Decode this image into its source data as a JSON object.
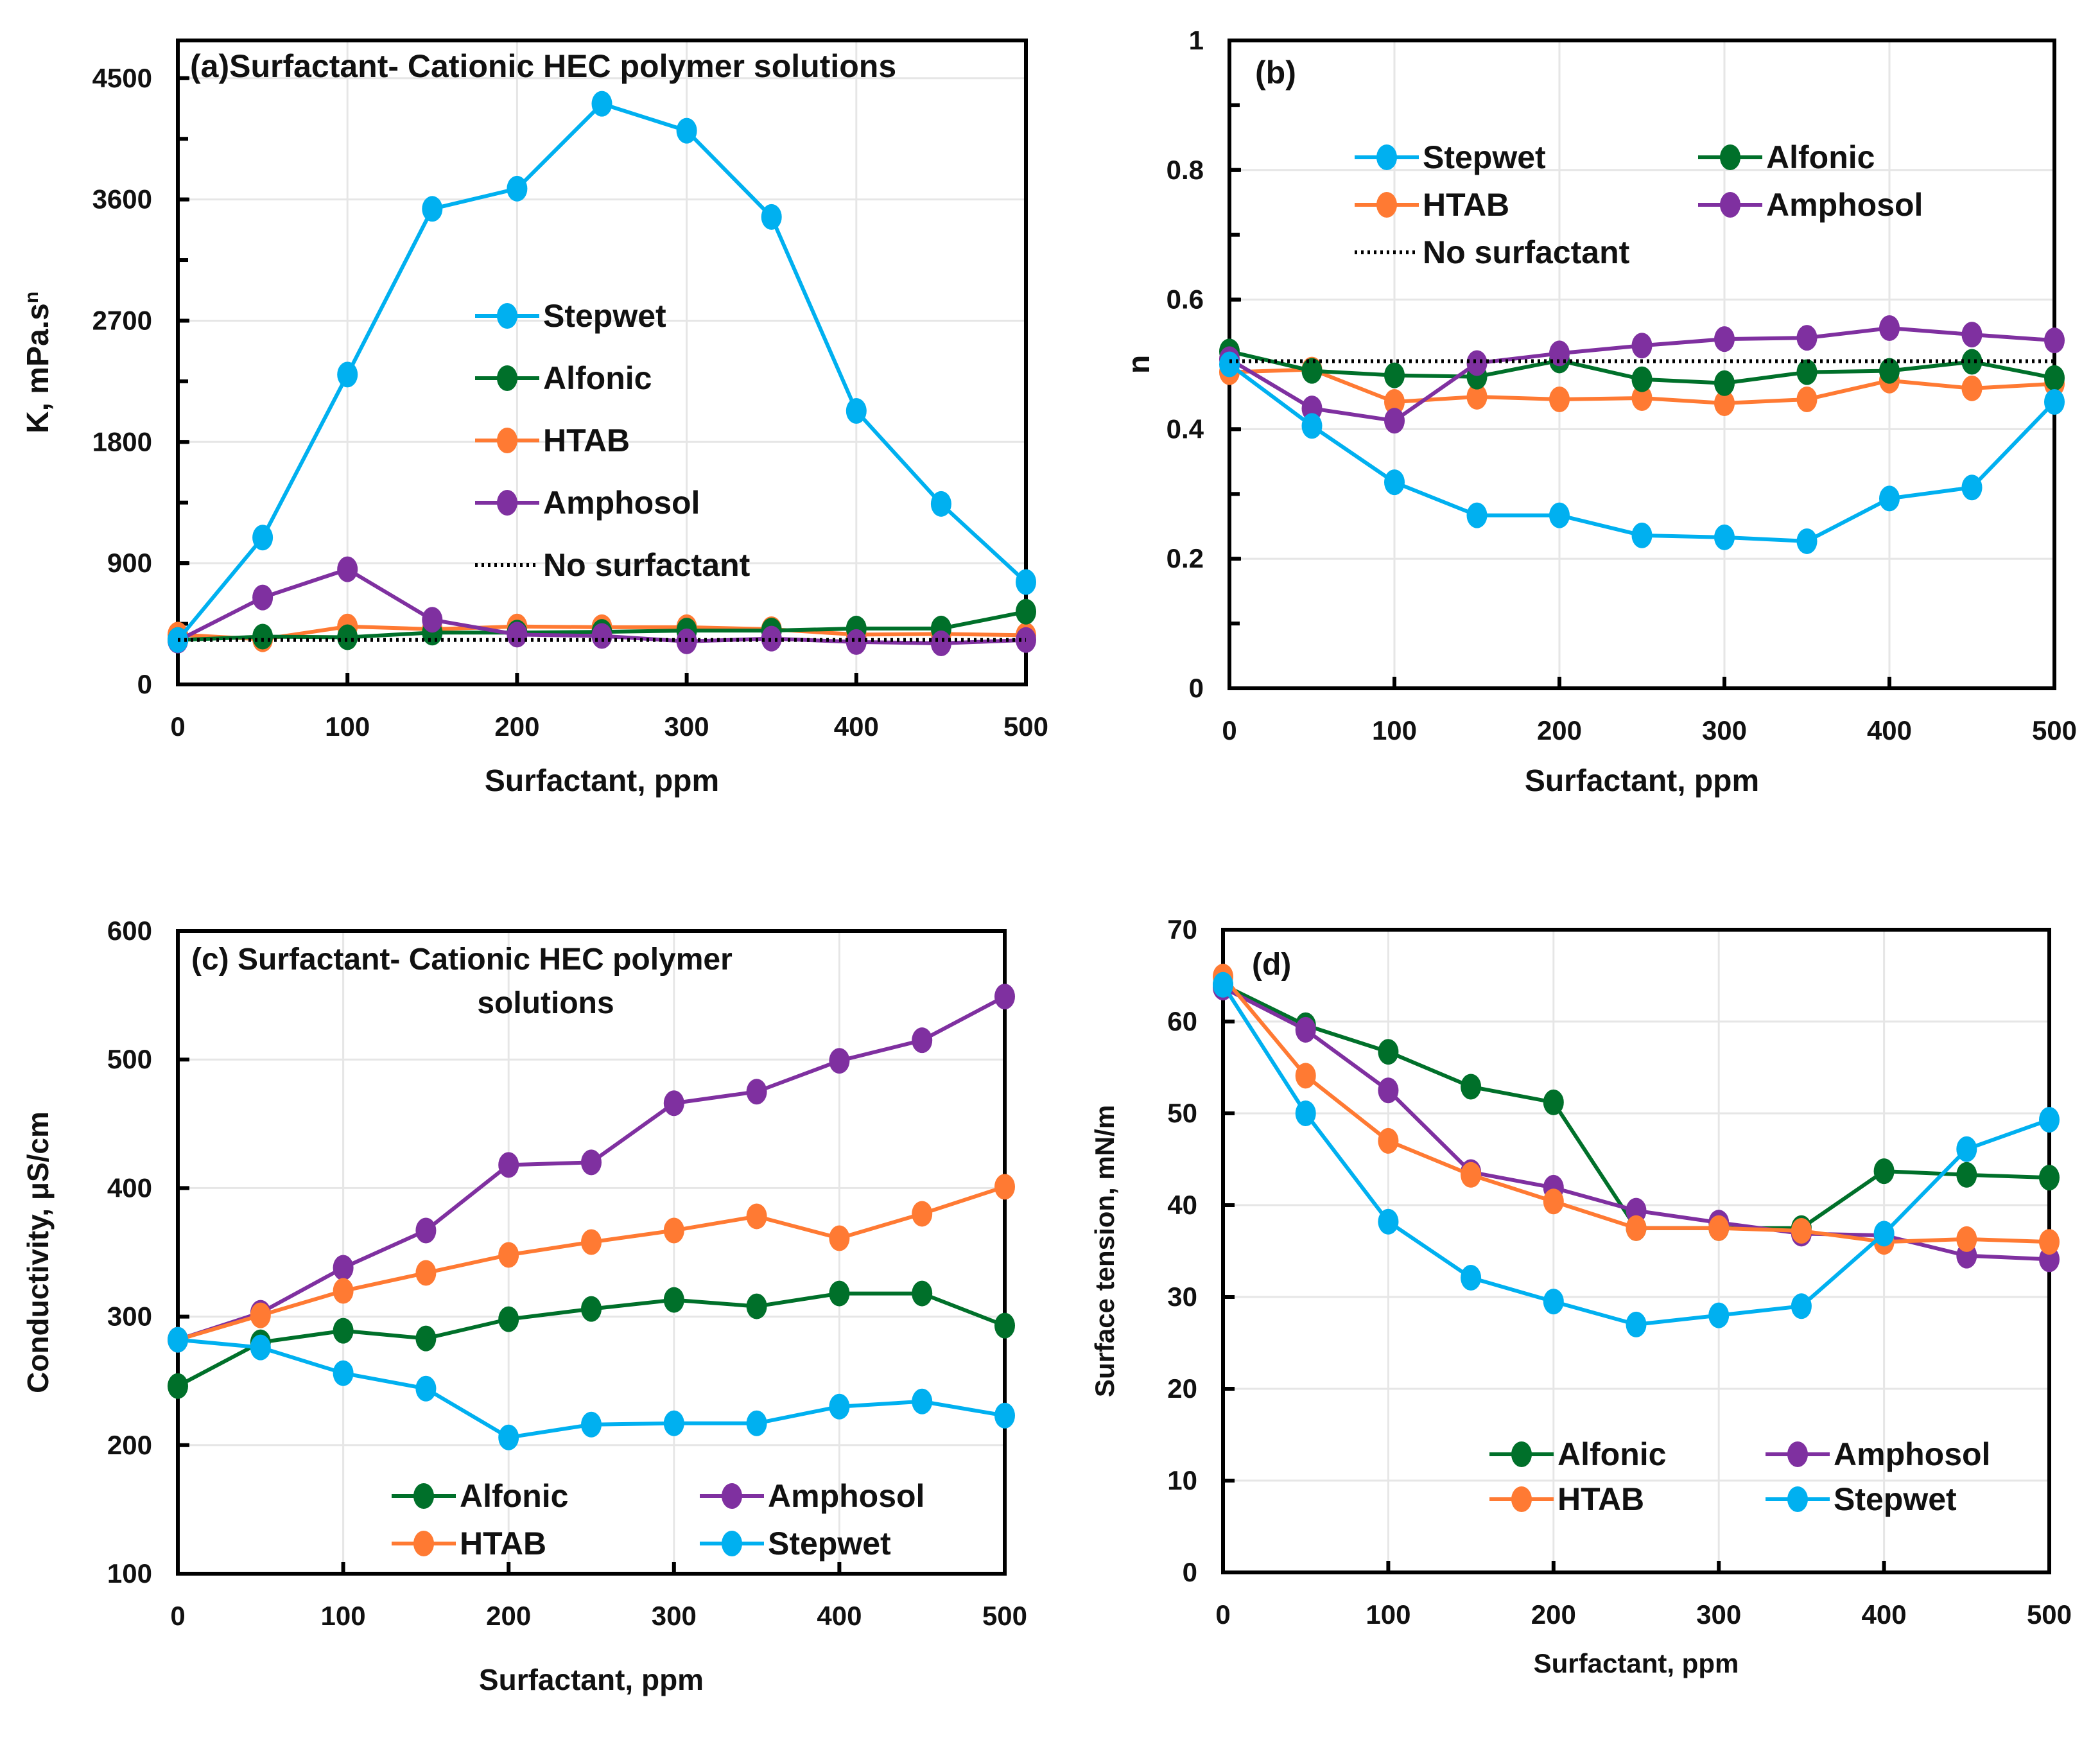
{
  "figure": {
    "colors": {
      "Stepwet": "#00B0F0",
      "Alfonic": "#00702A",
      "HTAB": "#FF7A33",
      "Amphosol": "#7F30A0",
      "No surfactant": "#000000",
      "axis": "#000000",
      "grid": "#E6E6E6"
    }
  },
  "chart_data": [
    {
      "id": "a",
      "type": "line",
      "title": "(a)Surfactant- Cationic HEC polymer solutions",
      "xlabel": "Surfactant, ppm",
      "ylabel": "K, mPa.s",
      "ylabel_superscript": "n",
      "x": [
        0,
        50,
        100,
        150,
        200,
        250,
        300,
        350,
        400,
        450,
        500
      ],
      "xlim": [
        0,
        500
      ],
      "ylim": [
        0,
        4780
      ],
      "xticks": [
        0,
        100,
        200,
        300,
        400,
        500
      ],
      "xtick_labels": [
        "0",
        "100",
        "200",
        "300",
        "400",
        "500"
      ],
      "yticks": [
        0,
        900,
        1800,
        2700,
        3600,
        4500
      ],
      "ytick_labels": [
        "0",
        "900",
        "1800",
        "2700",
        "3600",
        "4500"
      ],
      "yminor_step": 450,
      "grid": true,
      "legend": {
        "placement": "center",
        "columns": 1,
        "entries": [
          "Stepwet",
          "Alfonic",
          "HTAB",
          "Amphosol",
          "No surfactant"
        ]
      },
      "series": [
        {
          "name": "HTAB",
          "values": [
            370,
            335,
            430,
            410,
            430,
            425,
            425,
            410,
            370,
            375,
            365
          ]
        },
        {
          "name": "Alfonic",
          "values": [
            330,
            355,
            350,
            385,
            385,
            390,
            400,
            400,
            415,
            415,
            540
          ]
        },
        {
          "name": "Amphosol",
          "values": [
            325,
            645,
            855,
            480,
            370,
            360,
            320,
            340,
            315,
            305,
            330
          ]
        },
        {
          "name": "Stepwet",
          "values": [
            330,
            1090,
            2300,
            3530,
            3680,
            4310,
            4110,
            3470,
            2030,
            1340,
            760
          ]
        },
        {
          "name": "No surfactant",
          "values": [
            330,
            330,
            330,
            330,
            330,
            330,
            330,
            330,
            330,
            330,
            330
          ],
          "style": "dotted"
        }
      ]
    },
    {
      "id": "b",
      "type": "line",
      "title": "(b)",
      "xlabel": "Surfactant, ppm",
      "ylabel": "n",
      "x": [
        0,
        50,
        100,
        150,
        200,
        250,
        300,
        350,
        400,
        450,
        500
      ],
      "xlim": [
        0,
        500
      ],
      "ylim": [
        0,
        1
      ],
      "xticks": [
        0,
        100,
        200,
        300,
        400,
        500
      ],
      "xtick_labels": [
        "0",
        "100",
        "200",
        "300",
        "400",
        "500"
      ],
      "yticks": [
        0,
        0.2,
        0.4,
        0.6,
        0.8,
        1
      ],
      "ytick_labels": [
        "0",
        "0.2",
        "0.4",
        "0.6",
        "0.8",
        "1"
      ],
      "yminor_step": 0.1,
      "grid": true,
      "legend": {
        "placement": "top-center",
        "columns": 2,
        "entries": [
          "Stepwet",
          "Alfonic",
          "HTAB",
          "Amphosol",
          "No surfactant"
        ]
      },
      "series": [
        {
          "name": "HTAB",
          "values": [
            0.488,
            0.492,
            0.442,
            0.45,
            0.446,
            0.448,
            0.44,
            0.446,
            0.475,
            0.463,
            0.47
          ]
        },
        {
          "name": "Alfonic",
          "values": [
            0.52,
            0.49,
            0.483,
            0.481,
            0.506,
            0.477,
            0.471,
            0.488,
            0.49,
            0.504,
            0.479
          ]
        },
        {
          "name": "Amphosol",
          "values": [
            0.508,
            0.432,
            0.413,
            0.502,
            0.517,
            0.529,
            0.539,
            0.541,
            0.556,
            0.546,
            0.537
          ]
        },
        {
          "name": "Stepwet",
          "values": [
            0.5,
            0.405,
            0.318,
            0.267,
            0.267,
            0.236,
            0.233,
            0.227,
            0.293,
            0.31,
            0.442
          ]
        },
        {
          "name": "No surfactant",
          "values": [
            0.505,
            0.505,
            0.505,
            0.505,
            0.505,
            0.505,
            0.505,
            0.505,
            0.505,
            0.505,
            0.505
          ],
          "style": "dotted"
        }
      ]
    },
    {
      "id": "c",
      "type": "line",
      "title": "(c)  Surfactant- Cationic HEC polymer",
      "title_line2": "solutions",
      "xlabel": "Surfactant, ppm",
      "ylabel": "Conductivity, μS/cm",
      "x": [
        0,
        50,
        100,
        150,
        200,
        250,
        300,
        350,
        400,
        450,
        500
      ],
      "xlim": [
        0,
        500
      ],
      "ylim": [
        100,
        600
      ],
      "xticks": [
        0,
        100,
        200,
        300,
        400,
        500
      ],
      "xtick_labels": [
        "0",
        "100",
        "200",
        "300",
        "400",
        "500"
      ],
      "yticks": [
        100,
        200,
        300,
        400,
        500,
        600
      ],
      "ytick_labels": [
        "100",
        "200",
        "300",
        "400",
        "500",
        "600"
      ],
      "grid": true,
      "legend": {
        "placement": "bottom-center",
        "columns": 2,
        "entries": [
          "Alfonic",
          "Amphosol",
          "HTAB",
          "Stepwet"
        ]
      },
      "series": [
        {
          "name": "Alfonic",
          "values": [
            246,
            280,
            289,
            283,
            298,
            306,
            313,
            308,
            318,
            318,
            293
          ]
        },
        {
          "name": "Amphosol",
          "values": [
            282,
            303,
            338,
            367,
            418,
            420,
            466,
            475,
            499,
            515,
            549
          ]
        },
        {
          "name": "HTAB",
          "values": [
            282,
            301,
            320,
            334,
            348,
            358,
            367,
            378,
            361,
            380,
            401
          ]
        },
        {
          "name": "Stepwet",
          "values": [
            282,
            276,
            256,
            244,
            206,
            216,
            217,
            217,
            230,
            234,
            223
          ]
        }
      ]
    },
    {
      "id": "d",
      "type": "line",
      "title": "(d)",
      "xlabel": "Surfactant, ppm",
      "ylabel": "Surface tension, mN/m",
      "x": [
        0,
        50,
        100,
        150,
        200,
        250,
        300,
        350,
        400,
        450,
        500
      ],
      "xlim": [
        0,
        500
      ],
      "ylim": [
        0,
        70
      ],
      "xticks": [
        0,
        100,
        200,
        300,
        400,
        500
      ],
      "xtick_labels": [
        "0",
        "100",
        "200",
        "300",
        "400",
        "500"
      ],
      "yticks": [
        0,
        10,
        20,
        30,
        40,
        50,
        60,
        70
      ],
      "ytick_labels": [
        "0",
        "10",
        "20",
        "30",
        "40",
        "50",
        "60",
        "70"
      ],
      "grid": true,
      "legend": {
        "placement": "bottom-center",
        "columns": 2,
        "entries": [
          "Alfonic",
          "Amphosol",
          "HTAB",
          "Stepwet"
        ]
      },
      "series": [
        {
          "name": "Alfonic",
          "values": [
            64.0,
            59.6,
            56.7,
            52.9,
            51.2,
            37.5,
            37.5,
            37.5,
            43.7,
            43.3,
            43.0
          ]
        },
        {
          "name": "Amphosol",
          "values": [
            63.7,
            59.1,
            52.5,
            43.6,
            41.9,
            39.4,
            38.1,
            36.9,
            36.7,
            34.5,
            34.1
          ]
        },
        {
          "name": "HTAB",
          "values": [
            64.9,
            54.1,
            47.0,
            43.3,
            40.4,
            37.5,
            37.5,
            37.2,
            36.0,
            36.3,
            36.0
          ]
        },
        {
          "name": "Stepwet",
          "values": [
            64.0,
            50.0,
            38.2,
            32.1,
            29.5,
            27.0,
            28.0,
            29.0,
            36.9,
            46.1,
            49.3
          ]
        }
      ]
    }
  ]
}
